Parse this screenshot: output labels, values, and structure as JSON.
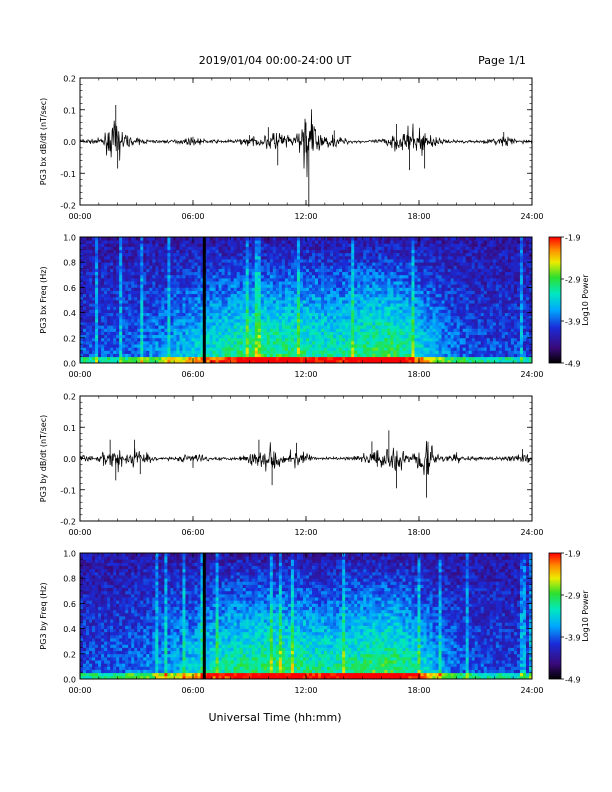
{
  "header": {
    "date_range": "2019/01/04  00:00-24:00 UT",
    "page": "Page 1/1"
  },
  "footer": {
    "xlabel": "Universal Time (hh:mm)"
  },
  "chart_data": [
    {
      "type": "line",
      "ylabel": "PG3 bx dB/dt (nT/sec)",
      "ylim": [
        -0.2,
        0.2
      ],
      "yticks": [
        "0.2",
        "0.1",
        "0.0",
        "-0.1",
        "-0.2"
      ],
      "xlim": [
        0,
        24
      ],
      "xticks": [
        "00:00",
        "06:00",
        "12:00",
        "18:00",
        "24:00"
      ],
      "series": [
        {
          "values": [
            {
              "x": 0.0,
              "y": -0.01
            },
            {
              "x": 1.5,
              "y": -0.02
            },
            {
              "x": 1.9,
              "y": 0.115
            },
            {
              "x": 2.0,
              "y": -0.085
            },
            {
              "x": 3.0,
              "y": 0.01
            },
            {
              "x": 6.0,
              "y": 0.015
            },
            {
              "x": 9.0,
              "y": 0.02
            },
            {
              "x": 10.0,
              "y": 0.045
            },
            {
              "x": 10.5,
              "y": -0.075
            },
            {
              "x": 12.0,
              "y": 0.06
            },
            {
              "x": 12.15,
              "y": -0.205
            },
            {
              "x": 13.5,
              "y": 0.035
            },
            {
              "x": 16.8,
              "y": 0.055
            },
            {
              "x": 17.5,
              "y": -0.09
            },
            {
              "x": 18.3,
              "y": -0.085
            },
            {
              "x": 22.5,
              "y": 0.03
            },
            {
              "x": 24.0,
              "y": -0.005
            }
          ]
        }
      ]
    },
    {
      "type": "heatmap",
      "ylabel": "PG3 bx Freq (Hz)",
      "ylim": [
        0.0,
        1.0
      ],
      "yticks": [
        "1.0",
        "0.8",
        "0.6",
        "0.4",
        "0.2",
        "0.0"
      ],
      "xlim": [
        0,
        24
      ],
      "xticks": [
        "00:00",
        "06:00",
        "12:00",
        "18:00",
        "24:00"
      ],
      "colorbar": {
        "label": "Log10 Power",
        "ticks": [
          "-1.9",
          "-2.9",
          "-3.9",
          "-4.9"
        ],
        "range": [
          -4.9,
          -1.9
        ]
      }
    },
    {
      "type": "line",
      "ylabel": "PG3 by dB/dt (nT/sec)",
      "ylim": [
        -0.2,
        0.2
      ],
      "yticks": [
        "0.2",
        "0.1",
        "0.0",
        "-0.1",
        "-0.2"
      ],
      "xlim": [
        0,
        24
      ],
      "xticks": [
        "00:00",
        "06:00",
        "12:00",
        "18:00",
        "24:00"
      ],
      "series": [
        {
          "values": [
            {
              "x": 0.0,
              "y": -0.02
            },
            {
              "x": 1.6,
              "y": 0.06
            },
            {
              "x": 1.9,
              "y": -0.07
            },
            {
              "x": 2.9,
              "y": 0.06
            },
            {
              "x": 3.2,
              "y": -0.05
            },
            {
              "x": 6.0,
              "y": -0.03
            },
            {
              "x": 9.5,
              "y": 0.06
            },
            {
              "x": 10.2,
              "y": -0.085
            },
            {
              "x": 11.5,
              "y": 0.05
            },
            {
              "x": 15.5,
              "y": 0.055
            },
            {
              "x": 16.4,
              "y": 0.09
            },
            {
              "x": 16.8,
              "y": -0.095
            },
            {
              "x": 18.4,
              "y": -0.125
            },
            {
              "x": 20.0,
              "y": 0.02
            },
            {
              "x": 23.5,
              "y": 0.03
            },
            {
              "x": 24.0,
              "y": -0.01
            }
          ]
        }
      ]
    },
    {
      "type": "heatmap",
      "ylabel": "PG3 by Freq (Hz)",
      "ylim": [
        0.0,
        1.0
      ],
      "yticks": [
        "1.0",
        "0.8",
        "0.6",
        "0.4",
        "0.2",
        "0.0"
      ],
      "xlim": [
        0,
        24
      ],
      "xticks": [
        "00:00",
        "06:00",
        "12:00",
        "18:00",
        "24:00"
      ],
      "colorbar": {
        "label": "Log10 Power",
        "ticks": [
          "-1.9",
          "-2.9",
          "-3.9",
          "-4.9"
        ],
        "range": [
          -4.9,
          -1.9
        ]
      }
    }
  ]
}
